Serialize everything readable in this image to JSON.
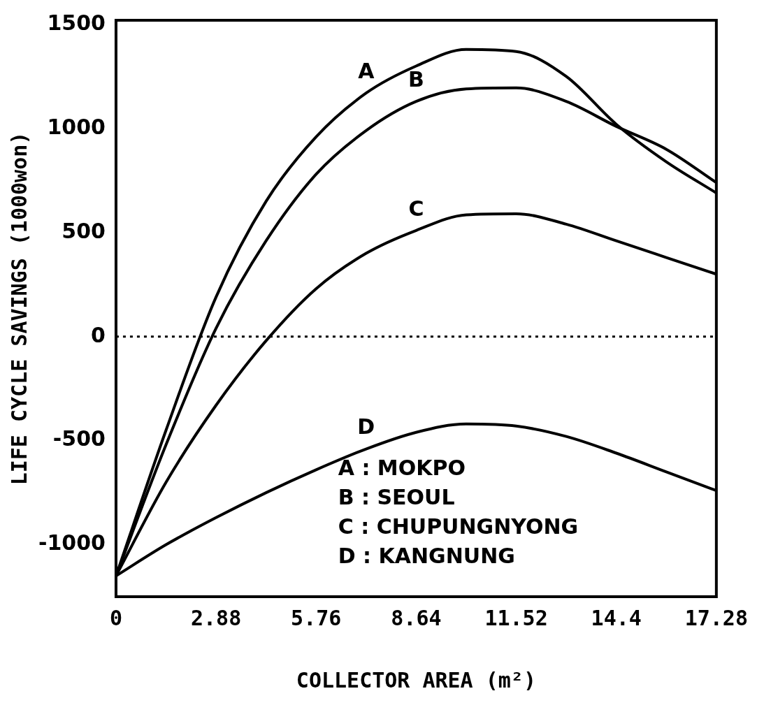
{
  "chart_data": {
    "type": "line",
    "xlabel": "COLLECTOR AREA (m²)",
    "ylabel": "LIFE CYCLE SAVINGS (1000won)",
    "xlim": [
      0,
      17.28
    ],
    "ylim": [
      -1250,
      1520
    ],
    "xticks": [
      0,
      2.88,
      5.76,
      8.64,
      11.52,
      14.4,
      17.28
    ],
    "yticks": [
      -1000,
      -500,
      0,
      500,
      1000,
      1500
    ],
    "line_style": "solid",
    "marker": "none",
    "series": [
      {
        "name": "A",
        "color": "#000000",
        "x": [
          0,
          1.44,
          2.88,
          4.32,
          5.76,
          7.2,
          8.64,
          10.08,
          11.52,
          12.96,
          14.4,
          15.84,
          17.28
        ],
        "values": [
          -1150,
          -450,
          190,
          650,
          960,
          1170,
          1300,
          1380,
          1370,
          1250,
          1020,
          840,
          690
        ]
      },
      {
        "name": "B",
        "color": "#000000",
        "x": [
          0,
          1.44,
          2.88,
          4.32,
          5.76,
          7.2,
          8.64,
          10.08,
          11.52,
          12.96,
          14.4,
          15.84,
          17.28
        ],
        "values": [
          -1150,
          -520,
          40,
          460,
          780,
          990,
          1130,
          1190,
          1195,
          1130,
          1010,
          900,
          740
        ]
      },
      {
        "name": "C",
        "color": "#000000",
        "x": [
          0,
          1.44,
          2.88,
          4.32,
          5.76,
          7.2,
          8.64,
          10.08,
          11.52,
          12.96,
          14.4,
          15.84,
          17.28
        ],
        "values": [
          -1150,
          -700,
          -330,
          -20,
          230,
          400,
          510,
          585,
          590,
          540,
          460,
          380,
          300
        ]
      },
      {
        "name": "D",
        "color": "#000000",
        "x": [
          0,
          1.44,
          2.88,
          4.32,
          5.76,
          7.2,
          8.64,
          10.08,
          11.52,
          12.96,
          14.4,
          15.84,
          17.28
        ],
        "values": [
          -1150,
          -1000,
          -870,
          -750,
          -640,
          -540,
          -460,
          -420,
          -430,
          -480,
          -560,
          -650,
          -740
        ]
      }
    ],
    "ref_lines": [
      {
        "axis": "y",
        "value": 0,
        "line_style": "dotted",
        "color": "#000000"
      }
    ],
    "annotations": [
      "A : MOKPO",
      "B : SEOUL",
      "C : CHUPUNGNYONG",
      "D : KANGNUNG"
    ]
  }
}
